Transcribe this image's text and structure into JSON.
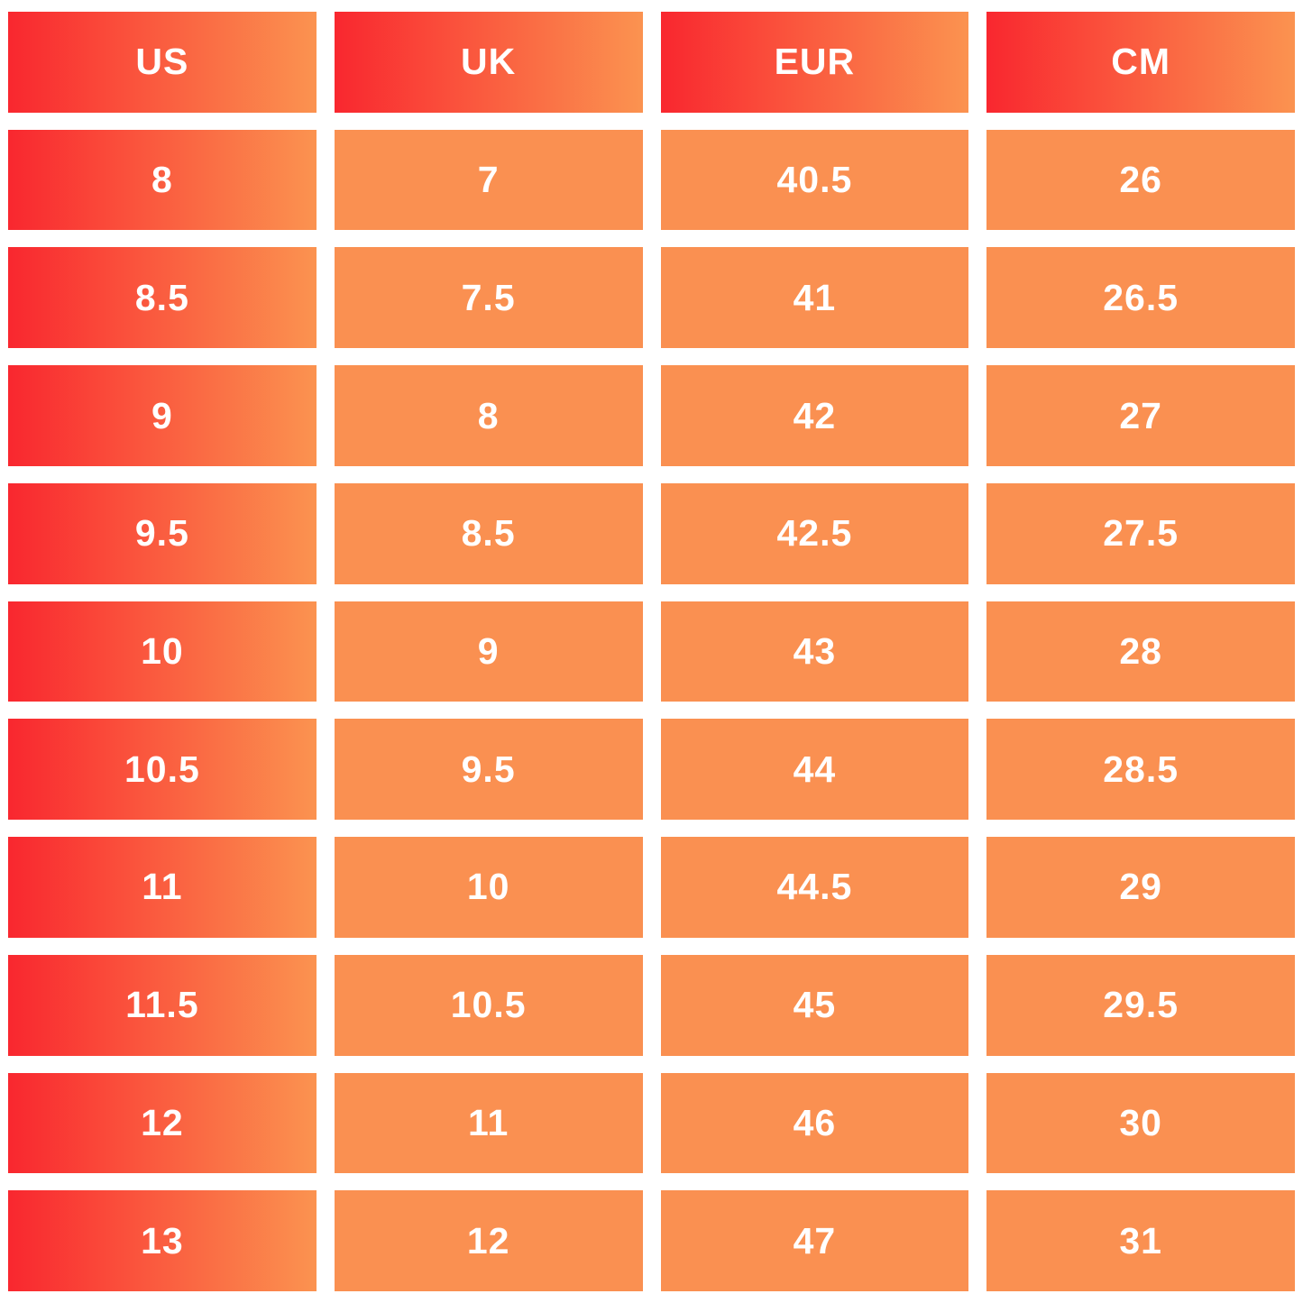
{
  "chart_data": {
    "type": "table",
    "columns": [
      "US",
      "UK",
      "EUR",
      "CM"
    ],
    "rows": [
      [
        "8",
        "7",
        "40.5",
        "26"
      ],
      [
        "8.5",
        "7.5",
        "41",
        "26.5"
      ],
      [
        "9",
        "8",
        "42",
        "27"
      ],
      [
        "9.5",
        "8.5",
        "42.5",
        "27.5"
      ],
      [
        "10",
        "9",
        "43",
        "28"
      ],
      [
        "10.5",
        "9.5",
        "44",
        "28.5"
      ],
      [
        "11",
        "10",
        "44.5",
        "29"
      ],
      [
        "11.5",
        "10.5",
        "45",
        "29.5"
      ],
      [
        "12",
        "11",
        "46",
        "30"
      ],
      [
        "13",
        "12",
        "47",
        "31"
      ]
    ],
    "layout": {
      "grid": "4 columns x 11 rows",
      "header_style": "left-to-right red-orange gradient",
      "first_column_style": "left-to-right red-orange gradient",
      "body_cell_style": "solid orange"
    }
  },
  "colors": {
    "gradient_start": "#F9272F",
    "gradient_end": "#FB9350",
    "cell_orange": "#FA9051",
    "text": "#FFFFFF",
    "background": "#FFFFFF"
  }
}
